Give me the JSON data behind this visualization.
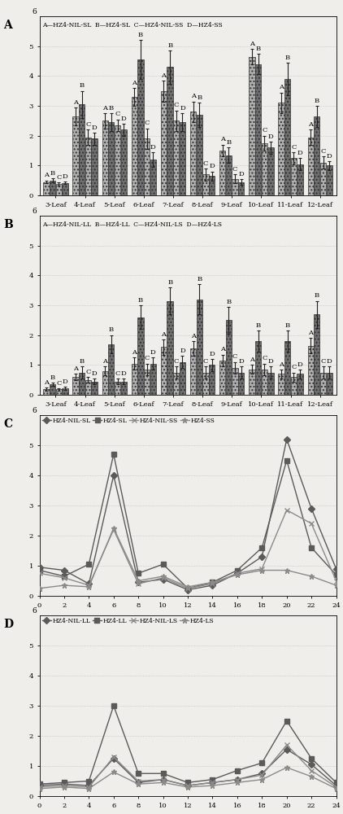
{
  "panel_A": {
    "label": "A",
    "legend": [
      "A—HZ4-NIL-SL",
      "B—HZ4-SL",
      "C—HZ4-NIL-SS",
      "D—HZ4-SS"
    ],
    "x_labels": [
      "3-Leaf",
      "4-Leaf",
      "5-Leaf",
      "6-Leaf",
      "7-Leaf",
      "8-Leaf",
      "9-Leaf",
      "10-Leaf",
      "11-Leaf",
      "12-Leaf"
    ],
    "series_labels": [
      "A",
      "B",
      "C",
      "D"
    ],
    "values": [
      [
        0.45,
        2.65,
        2.5,
        3.3,
        3.5,
        2.8,
        1.5,
        4.65,
        3.1,
        1.95
      ],
      [
        0.5,
        3.05,
        2.45,
        4.55,
        4.3,
        2.7,
        1.35,
        4.4,
        3.9,
        2.65
      ],
      [
        0.38,
        1.95,
        2.35,
        1.9,
        2.5,
        0.7,
        0.55,
        1.75,
        1.25,
        1.1
      ],
      [
        0.42,
        1.9,
        2.2,
        1.2,
        2.45,
        0.65,
        0.45,
        1.6,
        1.05,
        1.0
      ]
    ],
    "errors": [
      [
        0.05,
        0.3,
        0.25,
        0.3,
        0.35,
        0.35,
        0.2,
        0.25,
        0.35,
        0.25
      ],
      [
        0.06,
        0.45,
        0.3,
        0.65,
        0.55,
        0.4,
        0.25,
        0.35,
        0.55,
        0.35
      ],
      [
        0.05,
        0.25,
        0.2,
        0.35,
        0.35,
        0.2,
        0.15,
        0.25,
        0.2,
        0.2
      ],
      [
        0.05,
        0.2,
        0.2,
        0.25,
        0.3,
        0.15,
        0.1,
        0.2,
        0.2,
        0.15
      ]
    ],
    "bar_colors": [
      "#b0b0b0",
      "#707070",
      "#b0b0b0",
      "#707070"
    ],
    "bar_hatches": [
      "....",
      "....",
      "....",
      "...."
    ],
    "ylim": [
      0,
      6
    ],
    "yticks": [
      0,
      1,
      2,
      3,
      4,
      5
    ]
  },
  "panel_B": {
    "label": "B",
    "legend": [
      "A—HZ4-NIL-LL",
      "B—HZ4-LL",
      "C—HZ4-NIL-LS",
      "D—HZ4-LS"
    ],
    "x_labels": [
      "3-Leaf",
      "4-Leaf",
      "5-Leaf",
      "6-Leaf",
      "7-Leaf",
      "8-Leaf",
      "9-Leaf",
      "10-Leaf",
      "11-Leaf",
      "12-Leaf"
    ],
    "series_labels": [
      "A",
      "B",
      "C",
      "D"
    ],
    "values": [
      [
        0.2,
        0.6,
        0.8,
        1.05,
        1.6,
        1.55,
        1.15,
        0.85,
        0.7,
        1.65
      ],
      [
        0.35,
        0.75,
        1.7,
        2.6,
        3.15,
        3.2,
        2.5,
        1.8,
        1.8,
        2.7
      ],
      [
        0.18,
        0.5,
        0.45,
        0.85,
        0.75,
        0.75,
        0.9,
        0.85,
        0.6,
        0.75
      ],
      [
        0.22,
        0.45,
        0.45,
        1.05,
        1.1,
        1.0,
        0.75,
        0.75,
        0.7,
        0.75
      ]
    ],
    "errors": [
      [
        0.05,
        0.1,
        0.15,
        0.2,
        0.25,
        0.25,
        0.2,
        0.15,
        0.15,
        0.25
      ],
      [
        0.06,
        0.2,
        0.3,
        0.4,
        0.45,
        0.5,
        0.45,
        0.35,
        0.35,
        0.45
      ],
      [
        0.04,
        0.1,
        0.1,
        0.2,
        0.2,
        0.2,
        0.2,
        0.2,
        0.15,
        0.2
      ],
      [
        0.05,
        0.1,
        0.1,
        0.2,
        0.2,
        0.2,
        0.2,
        0.2,
        0.15,
        0.2
      ]
    ],
    "bar_colors": [
      "#b0b0b0",
      "#707070",
      "#b0b0b0",
      "#707070"
    ],
    "bar_hatches": [
      "....",
      "....",
      "....",
      "...."
    ],
    "ylim": [
      0,
      6
    ],
    "yticks": [
      0,
      1,
      2,
      3,
      4,
      5
    ]
  },
  "panel_C": {
    "label": "C",
    "legend": [
      "HZ4-NIL-SL",
      "HZ4-SL",
      "HZ4-NIL-SS",
      "HZ4-SS"
    ],
    "x_values": [
      0,
      2,
      4,
      6,
      8,
      10,
      12,
      14,
      16,
      18,
      20,
      22,
      24
    ],
    "series": [
      [
        0.95,
        0.85,
        0.4,
        4.0,
        0.45,
        0.55,
        0.2,
        0.35,
        0.75,
        1.3,
        5.2,
        2.9,
        0.9
      ],
      [
        0.85,
        0.65,
        1.05,
        4.7,
        0.75,
        1.05,
        0.25,
        0.45,
        0.85,
        1.6,
        4.5,
        1.6,
        0.7
      ],
      [
        0.75,
        0.6,
        0.35,
        2.2,
        0.4,
        0.6,
        0.25,
        0.4,
        0.75,
        0.9,
        2.85,
        2.4,
        0.5
      ],
      [
        0.25,
        0.35,
        0.3,
        2.25,
        0.5,
        0.65,
        0.3,
        0.45,
        0.7,
        0.85,
        0.85,
        0.65,
        0.35
      ]
    ],
    "line_colors": [
      "#5a5a5a",
      "#5a5a5a",
      "#8a8a8a",
      "#8a8a8a"
    ],
    "markers": [
      "D",
      "s",
      "x",
      "*"
    ],
    "marker_sizes": [
      4,
      4,
      5,
      5
    ],
    "ylim": [
      0,
      6
    ],
    "yticks": [
      0,
      1,
      2,
      3,
      4,
      5
    ],
    "xlim": [
      0,
      24
    ],
    "xticks": [
      0,
      2,
      4,
      6,
      8,
      10,
      12,
      14,
      16,
      18,
      20,
      22,
      24
    ]
  },
  "panel_D": {
    "label": "D",
    "legend": [
      "HZ4-NIL-LL",
      "HZ4-LL",
      "HZ4-NIL-LS",
      "HZ4-LS"
    ],
    "x_values": [
      0,
      2,
      4,
      6,
      8,
      10,
      12,
      14,
      16,
      18,
      20,
      22,
      24
    ],
    "series": [
      [
        0.35,
        0.4,
        0.35,
        1.25,
        0.45,
        0.55,
        0.35,
        0.45,
        0.55,
        0.75,
        1.55,
        1.05,
        0.35
      ],
      [
        0.4,
        0.45,
        0.5,
        3.0,
        0.75,
        0.75,
        0.45,
        0.55,
        0.85,
        1.1,
        2.5,
        1.25,
        0.45
      ],
      [
        0.3,
        0.35,
        0.3,
        1.3,
        0.5,
        0.55,
        0.35,
        0.45,
        0.55,
        0.7,
        1.7,
        0.85,
        0.3
      ],
      [
        0.25,
        0.3,
        0.25,
        0.8,
        0.4,
        0.45,
        0.3,
        0.35,
        0.45,
        0.55,
        0.95,
        0.65,
        0.25
      ]
    ],
    "line_colors": [
      "#5a5a5a",
      "#5a5a5a",
      "#8a8a8a",
      "#8a8a8a"
    ],
    "markers": [
      "D",
      "s",
      "x",
      "*"
    ],
    "marker_sizes": [
      4,
      4,
      5,
      5
    ],
    "ylim": [
      0,
      6
    ],
    "yticks": [
      0,
      1,
      2,
      3,
      4,
      5
    ],
    "xlim": [
      0,
      24
    ],
    "xticks": [
      0,
      2,
      4,
      6,
      8,
      10,
      12,
      14,
      16,
      18,
      20,
      22,
      24
    ]
  },
  "bg_color": "#f0eeea",
  "fontsize": 6.5,
  "panel_label_fontsize": 10
}
